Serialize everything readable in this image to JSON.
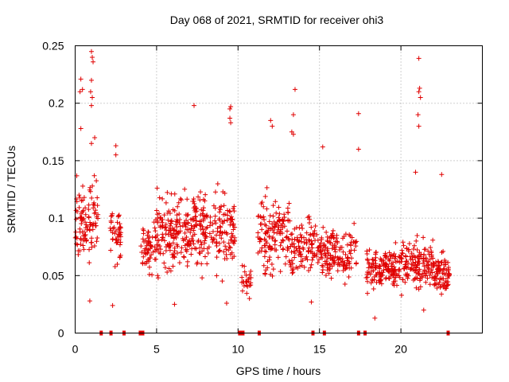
{
  "chart_data": {
    "type": "scatter",
    "title": "Day 068 of 2021, SRMTID for receiver ohi3",
    "xlabel": "GPS time / hours",
    "ylabel": "SRMTID / TECUs",
    "xlim": [
      0,
      25
    ],
    "ylim": [
      0,
      0.25
    ],
    "x_ticks": [
      0,
      5,
      10,
      15,
      20
    ],
    "x_tick_labels": [
      "0",
      "5",
      "10",
      "15",
      "20"
    ],
    "y_ticks": [
      0,
      0.05,
      0.1,
      0.15,
      0.2,
      0.25
    ],
    "y_tick_labels": [
      "0",
      "0.05",
      "0.1",
      "0.15",
      "0.2",
      "0.25"
    ],
    "grid": true,
    "series": [
      {
        "name": "SRMTID",
        "color": "#e00000",
        "marker": "plus",
        "clusters": [
          {
            "x_range": [
              0.0,
              0.8
            ],
            "y_range": [
              0.05,
              0.14
            ],
            "n": 60
          },
          {
            "x_range": [
              0.8,
              1.4
            ],
            "y_range": [
              0.05,
              0.15
            ],
            "n": 45
          },
          {
            "x_range": [
              2.1,
              2.9
            ],
            "y_range": [
              0.05,
              0.12
            ],
            "n": 45
          },
          {
            "x_range": [
              4.0,
              5.0
            ],
            "y_range": [
              0.04,
              0.11
            ],
            "n": 60
          },
          {
            "x_range": [
              5.0,
              7.0
            ],
            "y_range": [
              0.04,
              0.13
            ],
            "n": 160
          },
          {
            "x_range": [
              7.0,
              9.8
            ],
            "y_range": [
              0.04,
              0.14
            ],
            "n": 200
          },
          {
            "x_range": [
              10.2,
              10.8
            ],
            "y_range": [
              0.03,
              0.07
            ],
            "n": 25
          },
          {
            "x_range": [
              11.2,
              13.2
            ],
            "y_range": [
              0.04,
              0.13
            ],
            "n": 140
          },
          {
            "x_range": [
              13.2,
              15.0
            ],
            "y_range": [
              0.04,
              0.11
            ],
            "n": 110
          },
          {
            "x_range": [
              15.0,
              17.3
            ],
            "y_range": [
              0.04,
              0.1
            ],
            "n": 150
          },
          {
            "x_range": [
              17.8,
              20.0
            ],
            "y_range": [
              0.03,
              0.08
            ],
            "n": 150
          },
          {
            "x_range": [
              20.0,
              22.0
            ],
            "y_range": [
              0.03,
              0.09
            ],
            "n": 150
          },
          {
            "x_range": [
              22.0,
              23.0
            ],
            "y_range": [
              0.03,
              0.075
            ],
            "n": 80
          }
        ],
        "outliers": [
          {
            "x": 1.0,
            "y": 0.245
          },
          {
            "x": 1.05,
            "y": 0.24
          },
          {
            "x": 1.1,
            "y": 0.236
          },
          {
            "x": 1.0,
            "y": 0.22
          },
          {
            "x": 0.95,
            "y": 0.21
          },
          {
            "x": 1.05,
            "y": 0.205
          },
          {
            "x": 1.0,
            "y": 0.198
          },
          {
            "x": 0.35,
            "y": 0.221
          },
          {
            "x": 0.45,
            "y": 0.212
          },
          {
            "x": 0.3,
            "y": 0.21
          },
          {
            "x": 0.35,
            "y": 0.178
          },
          {
            "x": 1.2,
            "y": 0.17
          },
          {
            "x": 1.0,
            "y": 0.165
          },
          {
            "x": 2.5,
            "y": 0.163
          },
          {
            "x": 2.5,
            "y": 0.155
          },
          {
            "x": 7.3,
            "y": 0.198
          },
          {
            "x": 9.55,
            "y": 0.197
          },
          {
            "x": 9.5,
            "y": 0.195
          },
          {
            "x": 9.5,
            "y": 0.187
          },
          {
            "x": 9.55,
            "y": 0.183
          },
          {
            "x": 13.5,
            "y": 0.212
          },
          {
            "x": 13.4,
            "y": 0.19
          },
          {
            "x": 12.0,
            "y": 0.185
          },
          {
            "x": 12.1,
            "y": 0.18
          },
          {
            "x": 13.3,
            "y": 0.175
          },
          {
            "x": 13.4,
            "y": 0.173
          },
          {
            "x": 17.4,
            "y": 0.191
          },
          {
            "x": 17.4,
            "y": 0.16
          },
          {
            "x": 15.2,
            "y": 0.162
          },
          {
            "x": 21.1,
            "y": 0.239
          },
          {
            "x": 21.15,
            "y": 0.213
          },
          {
            "x": 21.1,
            "y": 0.21
          },
          {
            "x": 21.2,
            "y": 0.205
          },
          {
            "x": 21.05,
            "y": 0.19
          },
          {
            "x": 21.1,
            "y": 0.18
          },
          {
            "x": 20.9,
            "y": 0.14
          },
          {
            "x": 22.5,
            "y": 0.138
          },
          {
            "x": 0.9,
            "y": 0.028
          },
          {
            "x": 2.3,
            "y": 0.024
          },
          {
            "x": 14.5,
            "y": 0.027
          },
          {
            "x": 18.4,
            "y": 0.013
          },
          {
            "x": 10.7,
            "y": 0.03
          },
          {
            "x": 21.4,
            "y": 0.02
          },
          {
            "x": 9.3,
            "y": 0.026
          },
          {
            "x": 6.1,
            "y": 0.025
          }
        ]
      }
    ],
    "gap_markers_x": [
      1.6,
      2.2,
      3.0,
      4.0,
      4.15,
      10.1,
      10.2,
      10.3,
      11.3,
      14.6,
      15.3,
      17.4,
      17.8,
      22.9
    ]
  }
}
